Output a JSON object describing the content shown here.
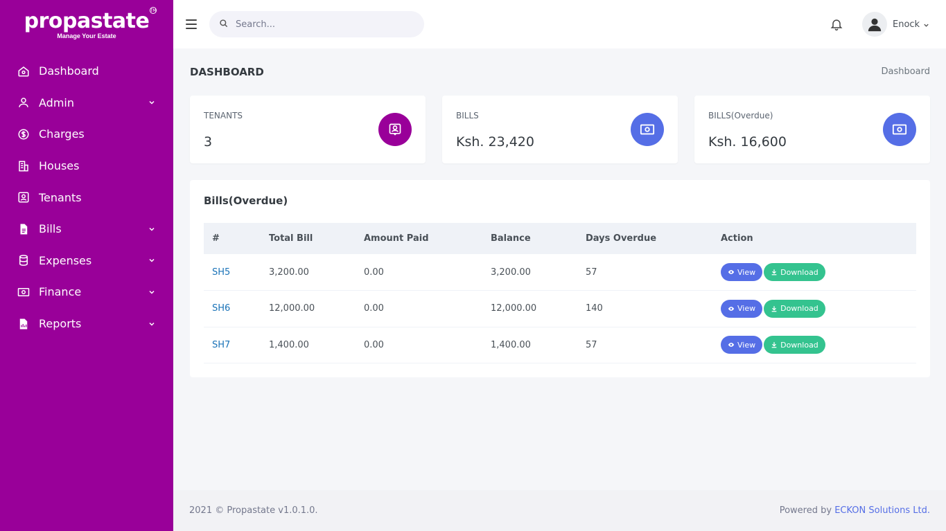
{
  "brand": {
    "name": "propastate",
    "tagline": "Manage Your Estate",
    "tm": "TM"
  },
  "sidebar": {
    "items": [
      {
        "label": "Dashboard",
        "icon": "home-icon",
        "has_submenu": false
      },
      {
        "label": "Admin",
        "icon": "user-icon",
        "has_submenu": true
      },
      {
        "label": "Charges",
        "icon": "dollar-circle-icon",
        "has_submenu": false
      },
      {
        "label": "Houses",
        "icon": "building-icon",
        "has_submenu": false
      },
      {
        "label": "Tenants",
        "icon": "user-square-icon",
        "has_submenu": false
      },
      {
        "label": "Bills",
        "icon": "file-icon",
        "has_submenu": true
      },
      {
        "label": "Expenses",
        "icon": "database-icon",
        "has_submenu": true
      },
      {
        "label": "Finance",
        "icon": "money-icon",
        "has_submenu": true
      },
      {
        "label": "Reports",
        "icon": "report-icon",
        "has_submenu": true
      }
    ]
  },
  "header": {
    "search_placeholder": "Search...",
    "user_name": "Enock"
  },
  "page": {
    "title": "DASHBOARD",
    "breadcrumb": "Dashboard"
  },
  "cards": [
    {
      "label": "TENANTS",
      "value": "3",
      "icon": "user-square-icon",
      "color": "#990099"
    },
    {
      "label": "BILLS",
      "value": "Ksh. 23,420",
      "icon": "money-icon",
      "color": "#556ee6"
    },
    {
      "label": "BILLS(Overdue)",
      "value": "Ksh. 16,600",
      "icon": "money-icon",
      "color": "#556ee6"
    }
  ],
  "overdue": {
    "title": "Bills(Overdue)",
    "columns": [
      "#",
      "Total Bill",
      "Amount Paid",
      "Balance",
      "Days Overdue",
      "Action"
    ],
    "rows": [
      {
        "id": "SH5",
        "total": "3,200.00",
        "paid": "0.00",
        "balance": "3,200.00",
        "days": "57"
      },
      {
        "id": "SH6",
        "total": "12,000.00",
        "paid": "0.00",
        "balance": "12,000.00",
        "days": "140"
      },
      {
        "id": "SH7",
        "total": "1,400.00",
        "paid": "0.00",
        "balance": "1,400.00",
        "days": "57"
      }
    ],
    "view_label": "View",
    "download_label": "Download"
  },
  "footer": {
    "copyright": "2021 © Propastate v1.0.1.0.",
    "powered_prefix": "Powered by",
    "powered_link": "ECKON Solutions Ltd."
  },
  "colors": {
    "sidebar": "#990099",
    "primary": "#556ee6",
    "success": "#34c38f"
  }
}
